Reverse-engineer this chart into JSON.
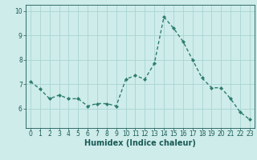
{
  "x": [
    0,
    1,
    2,
    3,
    4,
    5,
    6,
    7,
    8,
    9,
    10,
    11,
    12,
    13,
    14,
    15,
    16,
    17,
    18,
    19,
    20,
    21,
    22,
    23
  ],
  "y": [
    7.1,
    6.8,
    6.4,
    6.55,
    6.4,
    6.4,
    6.1,
    6.2,
    6.2,
    6.1,
    7.2,
    7.35,
    7.2,
    7.85,
    9.75,
    9.3,
    8.75,
    8.0,
    7.25,
    6.85,
    6.85,
    6.4,
    5.85,
    5.55
  ],
  "line_color": "#2e7d6e",
  "marker": "D",
  "marker_size": 2.0,
  "line_width": 1.0,
  "bg_color": "#ceecea",
  "grid_color": "#a8d5d0",
  "tick_color": "#1a5a55",
  "xlabel": "Humidex (Indice chaleur)",
  "xlabel_fontsize": 7.0,
  "tick_fontsize": 5.5,
  "xlim": [
    -0.5,
    23.5
  ],
  "ylim": [
    5.2,
    10.25
  ],
  "yticks": [
    6,
    7,
    8,
    9,
    10
  ],
  "xticks": [
    0,
    1,
    2,
    3,
    4,
    5,
    6,
    7,
    8,
    9,
    10,
    11,
    12,
    13,
    14,
    15,
    16,
    17,
    18,
    19,
    20,
    21,
    22,
    23
  ]
}
